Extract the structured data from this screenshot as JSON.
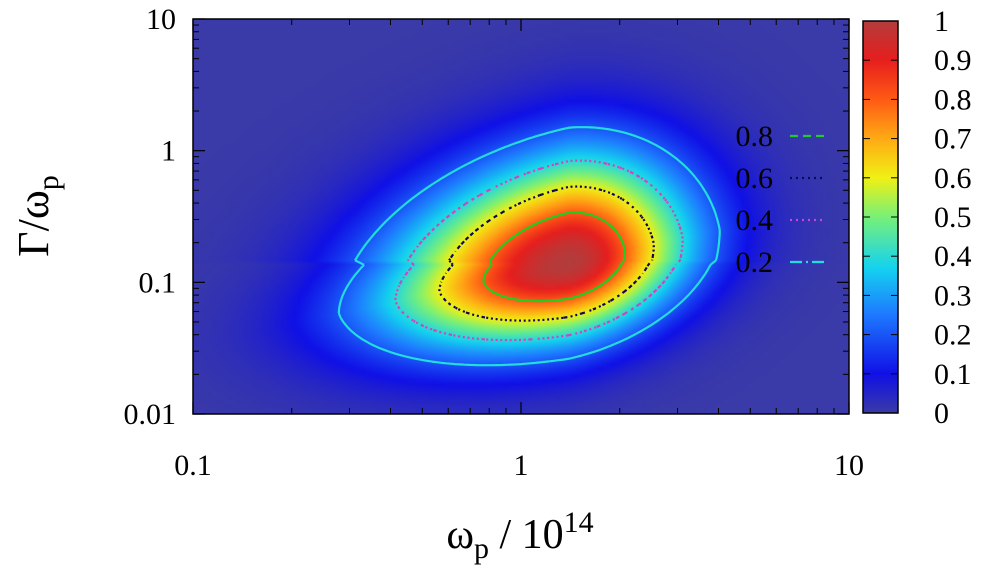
{
  "chart_data": {
    "type": "heatmap",
    "title": "",
    "xlabel": {
      "main": "ω",
      "sub": "p",
      "rest": " / 10",
      "sup": "14"
    },
    "ylabel": {
      "main": "Γ/ω",
      "sub": "p"
    },
    "x_scale": "log",
    "y_scale": "log",
    "xlim": [
      0.1,
      10
    ],
    "ylim": [
      0.01,
      10
    ],
    "x_ticks": [
      {
        "value": 0.1,
        "label": "0.1"
      },
      {
        "value": 1,
        "label": "1"
      },
      {
        "value": 10,
        "label": "10"
      }
    ],
    "y_ticks": [
      {
        "value": 0.01,
        "label": "0.01"
      },
      {
        "value": 0.1,
        "label": "0.1"
      },
      {
        "value": 1,
        "label": "1"
      },
      {
        "value": 10,
        "label": "10"
      }
    ],
    "peak": {
      "x": 1.4,
      "y": 0.14,
      "value": 1.0
    },
    "colorbar": {
      "range": [
        0,
        1
      ],
      "ticks": [
        "0",
        "0.1",
        "0.2",
        "0.3",
        "0.4",
        "0.5",
        "0.6",
        "0.7",
        "0.8",
        "0.9",
        "1"
      ],
      "colormap": "jet"
    },
    "contours": [
      {
        "level": 0.8,
        "label": "0.8",
        "color": "#22cc22",
        "style": "dashed"
      },
      {
        "level": 0.6,
        "label": "0.6",
        "color": "#0a0a55",
        "style": "dotted"
      },
      {
        "level": 0.4,
        "label": "0.4",
        "color": "#cc44cc",
        "style": "dotted"
      },
      {
        "level": 0.2,
        "label": "0.2",
        "color": "#22dddd",
        "style": "dash-dot"
      }
    ],
    "legend_position": "top-right inside plot"
  }
}
